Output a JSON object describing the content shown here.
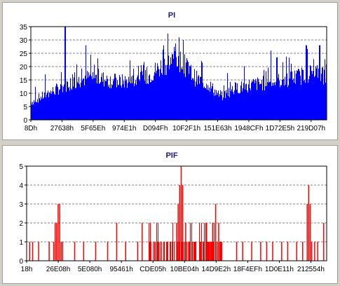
{
  "chart_data": [
    {
      "type": "bar",
      "title": "PI",
      "series": [
        {
          "color": "#0000ff"
        }
      ],
      "ylim": [
        0,
        35
      ],
      "yticks": [
        0,
        5,
        10,
        15,
        20,
        25,
        30,
        35
      ],
      "xtick_labels": [
        "8Dh",
        "27638h",
        "5F65Eh",
        "974E1h",
        "D094Fh",
        "10F2F1h",
        "151E63h",
        "1948CFh",
        "1D72E5h",
        "219D07h"
      ],
      "grid": "horizontal dashed",
      "profile": [
        [
          0,
          7
        ],
        [
          0.05,
          10
        ],
        [
          0.12,
          14
        ],
        [
          0.2,
          17
        ],
        [
          0.3,
          15
        ],
        [
          0.38,
          16
        ],
        [
          0.45,
          22
        ],
        [
          0.5,
          24
        ],
        [
          0.56,
          16
        ],
        [
          0.6,
          14
        ],
        [
          0.64,
          9
        ],
        [
          0.68,
          12
        ],
        [
          0.75,
          14
        ],
        [
          0.82,
          15
        ],
        [
          0.9,
          17
        ],
        [
          0.96,
          19
        ],
        [
          1,
          17
        ]
      ],
      "peaks": [
        [
          0.115,
          36
        ],
        [
          0.185,
          28
        ],
        [
          0.447,
          28
        ],
        [
          0.5,
          31
        ],
        [
          0.515,
          30
        ],
        [
          0.81,
          26
        ],
        [
          0.93,
          28
        ],
        [
          0.975,
          28
        ]
      ]
    },
    {
      "type": "bar",
      "title": "PIF",
      "series": [
        {
          "color": "#ff0000"
        }
      ],
      "ylim": [
        0,
        5
      ],
      "yticks": [
        0,
        1,
        2,
        3,
        4,
        5
      ],
      "xtick_labels": [
        "18h",
        "26E08h",
        "5E080h",
        "95461h",
        "CDE05h",
        "10BE04h",
        "14D9E2h",
        "18F4EFh",
        "1D0E11h",
        "212554h"
      ],
      "grid": "horizontal dashed",
      "spikes": [
        [
          0.01,
          1
        ],
        [
          0.02,
          1
        ],
        [
          0.04,
          1
        ],
        [
          0.075,
          1
        ],
        [
          0.09,
          1
        ],
        [
          0.095,
          2
        ],
        [
          0.1,
          2
        ],
        [
          0.105,
          3
        ],
        [
          0.11,
          3
        ],
        [
          0.115,
          1
        ],
        [
          0.12,
          1
        ],
        [
          0.16,
          1
        ],
        [
          0.19,
          1
        ],
        [
          0.23,
          1
        ],
        [
          0.27,
          1
        ],
        [
          0.3,
          2
        ],
        [
          0.33,
          1
        ],
        [
          0.37,
          1
        ],
        [
          0.385,
          2
        ],
        [
          0.41,
          1
        ],
        [
          0.44,
          1
        ],
        [
          0.47,
          1
        ],
        [
          0.5,
          2
        ],
        [
          0.505,
          3
        ],
        [
          0.51,
          4
        ],
        [
          0.515,
          5
        ],
        [
          0.52,
          4
        ],
        [
          0.53,
          2
        ],
        [
          0.54,
          1
        ],
        [
          0.56,
          1
        ],
        [
          0.58,
          1
        ],
        [
          0.6,
          2
        ],
        [
          0.61,
          1
        ],
        [
          0.62,
          2
        ],
        [
          0.63,
          3
        ],
        [
          0.64,
          2
        ],
        [
          0.65,
          1
        ],
        [
          0.7,
          1
        ],
        [
          0.72,
          1
        ],
        [
          0.75,
          1
        ],
        [
          0.78,
          1
        ],
        [
          0.8,
          1
        ],
        [
          0.82,
          1
        ],
        [
          0.85,
          1
        ],
        [
          0.87,
          1
        ],
        [
          0.9,
          1
        ],
        [
          0.92,
          1
        ],
        [
          0.935,
          3
        ],
        [
          0.94,
          4
        ],
        [
          0.945,
          3
        ],
        [
          0.95,
          1
        ],
        [
          0.96,
          1
        ],
        [
          0.97,
          1
        ],
        [
          0.99,
          2
        ]
      ],
      "cluster": [
        0.4,
        0.65
      ]
    }
  ]
}
